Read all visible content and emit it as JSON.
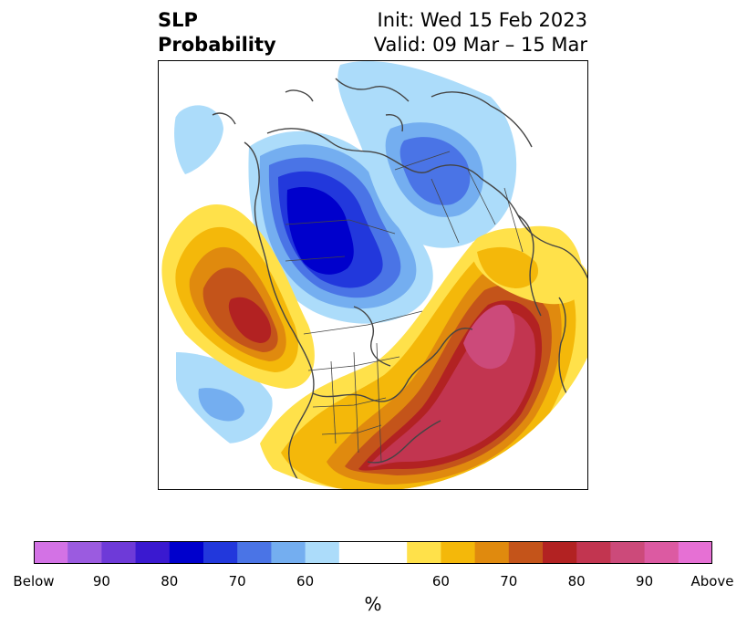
{
  "title": {
    "left_line1": "SLP",
    "left_line2": "Probability",
    "right_line1": "Init: Wed 15 Feb 2023",
    "right_line2": "Valid: 09 Mar – 15 Mar"
  },
  "colorbar": {
    "label": "%",
    "colors": [
      "#d372e5",
      "#9b5be0",
      "#6e3ad8",
      "#3a19d0",
      "#0000cc",
      "#2238dc",
      "#4a74e6",
      "#74aef0",
      "#acdcfa",
      "#ffffff",
      "#ffffff",
      "#ffe14a",
      "#f4b80a",
      "#e08a0e",
      "#c4541a",
      "#b22222",
      "#c23550",
      "#cc4a7a",
      "#dc5aa2",
      "#e670d4"
    ],
    "ticks": [
      {
        "label": "Below",
        "index": 0
      },
      {
        "label": "90",
        "index": 2
      },
      {
        "label": "80",
        "index": 4
      },
      {
        "label": "70",
        "index": 6
      },
      {
        "label": "60",
        "index": 8
      },
      {
        "label": "60",
        "index": 12
      },
      {
        "label": "70",
        "index": 14
      },
      {
        "label": "80",
        "index": 16
      },
      {
        "label": "90",
        "index": 18
      },
      {
        "label": "Above",
        "index": 20
      }
    ]
  },
  "map": {
    "projection": "polar-stereographic",
    "region": "North America / North Pole",
    "coastline_color": "#444444",
    "below_colors": [
      "#acdcfa",
      "#74aef0",
      "#4a74e6",
      "#2238dc",
      "#0000cc"
    ],
    "above_colors": [
      "#ffe14a",
      "#f4b80a",
      "#e08a0e",
      "#c4541a",
      "#b22222",
      "#c23550",
      "#cc4a7a"
    ]
  }
}
